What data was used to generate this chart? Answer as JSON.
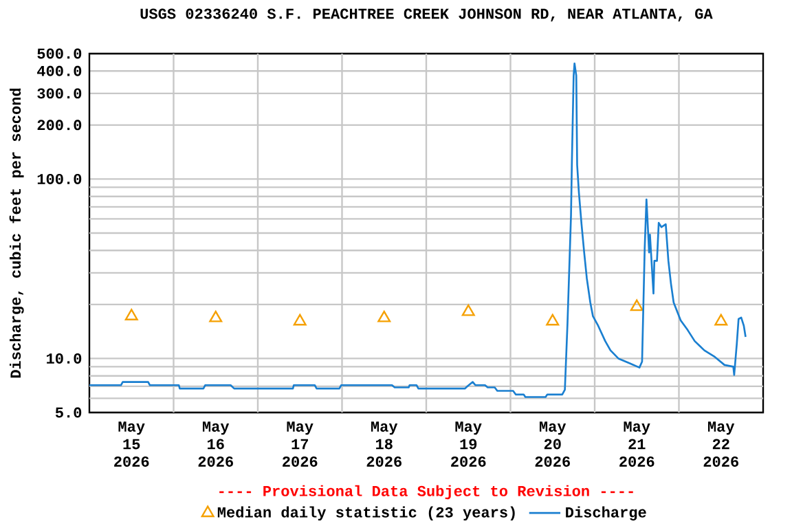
{
  "chart_data": {
    "type": "line",
    "title": "USGS 02336240 S.F. PEACHTREE CREEK JOHNSON RD, NEAR ATLANTA, GA",
    "ylabel": "Discharge, cubic feet per second",
    "annotations": [
      "---- Provisional Data Subject to Revision ----"
    ],
    "log": "y",
    "grid": true,
    "legend": "bottom",
    "xlim": [
      "2026-05-15T00:00",
      "2026-05-23T00:00"
    ],
    "xticks": [
      {
        "value": "2026-05-15T12:00",
        "label": "May 15 2026"
      },
      {
        "value": "2026-05-16T12:00",
        "label": "May 16 2026"
      },
      {
        "value": "2026-05-17T12:00",
        "label": "May 17 2026"
      },
      {
        "value": "2026-05-18T12:00",
        "label": "May 18 2026"
      },
      {
        "value": "2026-05-19T12:00",
        "label": "May 19 2026"
      },
      {
        "value": "2026-05-20T12:00",
        "label": "May 20 2026"
      },
      {
        "value": "2026-05-21T12:00",
        "label": "May 21 2026"
      },
      {
        "value": "2026-05-22T12:00",
        "label": "May 22 2026"
      },
      {
        "value": "2026-05-16T00:00",
        "label": null
      },
      {
        "value": "2026-05-17T00:00",
        "label": null
      },
      {
        "value": "2026-05-18T00:00",
        "label": null
      },
      {
        "value": "2026-05-19T00:00",
        "label": null
      },
      {
        "value": "2026-05-20T00:00",
        "label": null
      },
      {
        "value": "2026-05-21T00:00",
        "label": null
      },
      {
        "value": "2026-05-22T00:00",
        "label": null
      }
    ],
    "ylim": [
      5,
      500
    ],
    "yticks": [
      {
        "value": 5,
        "label": "5.0"
      },
      {
        "value": 10,
        "label": "10.0"
      },
      {
        "value": 100,
        "label": "100.0"
      },
      {
        "value": 200,
        "label": "200.0"
      },
      {
        "value": 300,
        "label": "300.0"
      },
      {
        "value": 400,
        "label": "400.0"
      },
      {
        "value": 500,
        "label": "500.0"
      },
      {
        "value": 6,
        "label": null
      },
      {
        "value": 7,
        "label": null
      },
      {
        "value": 8,
        "label": null
      },
      {
        "value": 9,
        "label": null
      },
      {
        "value": 20,
        "label": null
      },
      {
        "value": 30,
        "label": null
      },
      {
        "value": 40,
        "label": null
      },
      {
        "value": 50,
        "label": null
      },
      {
        "value": 60,
        "label": null
      },
      {
        "value": 70,
        "label": null
      },
      {
        "value": 80,
        "label": null
      },
      {
        "value": 90,
        "label": null
      }
    ],
    "series": [
      {
        "name": "Median daily statistic (23 years)",
        "type": "scatter",
        "marker": "triangle",
        "color": "#f5a000",
        "x": [
          "2026-05-15T12:00",
          "2026-05-16T12:00",
          "2026-05-17T12:00",
          "2026-05-18T12:00",
          "2026-05-19T12:00",
          "2026-05-20T12:00",
          "2026-05-21T12:00",
          "2026-05-22T12:00"
        ],
        "values": [
          17.2,
          16.8,
          16.1,
          16.8,
          18.2,
          16.1,
          19.4,
          16.1
        ]
      },
      {
        "name": "Discharge",
        "color": "#1a7fd0",
        "x": [
          "2026-05-15T00:00",
          "2026-05-15T09:00",
          "2026-05-15T09:30",
          "2026-05-15T16:45",
          "2026-05-15T17:15",
          "2026-05-16T01:30",
          "2026-05-16T01:45",
          "2026-05-16T08:30",
          "2026-05-16T09:00",
          "2026-05-16T16:15",
          "2026-05-16T17:15",
          "2026-05-17T10:00",
          "2026-05-17T10:15",
          "2026-05-17T16:15",
          "2026-05-17T16:45",
          "2026-05-17T23:15",
          "2026-05-17T23:45",
          "2026-05-18T14:15",
          "2026-05-18T15:00",
          "2026-05-18T19:00",
          "2026-05-18T19:15",
          "2026-05-18T21:15",
          "2026-05-18T21:45",
          "2026-05-19T11:00",
          "2026-05-19T11:45",
          "2026-05-19T13:15",
          "2026-05-19T14:00",
          "2026-05-19T16:45",
          "2026-05-19T17:30",
          "2026-05-19T19:30",
          "2026-05-19T20:15",
          "2026-05-20T00:45",
          "2026-05-20T01:30",
          "2026-05-20T03:45",
          "2026-05-20T04:15",
          "2026-05-20T10:00",
          "2026-05-20T10:30",
          "2026-05-20T14:45",
          "2026-05-20T15:30",
          "2026-05-20T16:15",
          "2026-05-20T17:15",
          "2026-05-20T17:30",
          "2026-05-20T18:00",
          "2026-05-20T18:15",
          "2026-05-20T18:45",
          "2026-05-20T19:00",
          "2026-05-20T19:30",
          "2026-05-20T20:15",
          "2026-05-20T21:00",
          "2026-05-20T21:45",
          "2026-05-20T22:45",
          "2026-05-20T23:30",
          "2026-05-21T01:00",
          "2026-05-21T03:00",
          "2026-05-21T04:30",
          "2026-05-21T06:45",
          "2026-05-21T10:00",
          "2026-05-21T12:45",
          "2026-05-21T13:30",
          "2026-05-21T14:15",
          "2026-05-21T14:45",
          "2026-05-21T15:00",
          "2026-05-21T15:30",
          "2026-05-21T15:45",
          "2026-05-21T16:45",
          "2026-05-21T17:00",
          "2026-05-21T17:45",
          "2026-05-21T18:15",
          "2026-05-21T19:00",
          "2026-05-21T20:15",
          "2026-05-21T21:00",
          "2026-05-21T21:45",
          "2026-05-21T22:30",
          "2026-05-22T00:30",
          "2026-05-22T02:30",
          "2026-05-22T04:30",
          "2026-05-22T07:15",
          "2026-05-22T10:15",
          "2026-05-22T13:00",
          "2026-05-22T15:30",
          "2026-05-22T15:45",
          "2026-05-22T16:30",
          "2026-05-22T17:00",
          "2026-05-22T17:45",
          "2026-05-22T18:30",
          "2026-05-22T19:00"
        ],
        "values": [
          7.1,
          7.1,
          7.4,
          7.4,
          7.1,
          7.1,
          6.8,
          6.8,
          7.1,
          7.1,
          6.8,
          6.8,
          7.1,
          7.1,
          6.8,
          6.8,
          7.1,
          7.1,
          6.9,
          6.9,
          7.1,
          7.1,
          6.8,
          6.8,
          7.0,
          7.4,
          7.1,
          7.1,
          6.9,
          6.9,
          6.6,
          6.6,
          6.3,
          6.3,
          6.1,
          6.1,
          6.3,
          6.3,
          6.7,
          15.7,
          62.7,
          124,
          377,
          441,
          377,
          120,
          84,
          56,
          39,
          28,
          20.5,
          17.2,
          15.2,
          12.5,
          11.1,
          10,
          9.4,
          8.9,
          9.6,
          41,
          77,
          62,
          39,
          49,
          23,
          35,
          35,
          57,
          54,
          56,
          35,
          26,
          20.5,
          16.3,
          14.4,
          12.5,
          11.1,
          10.2,
          9.2,
          9.0,
          8.1,
          12.1,
          16.6,
          16.9,
          15.2,
          13.2
        ]
      }
    ]
  }
}
